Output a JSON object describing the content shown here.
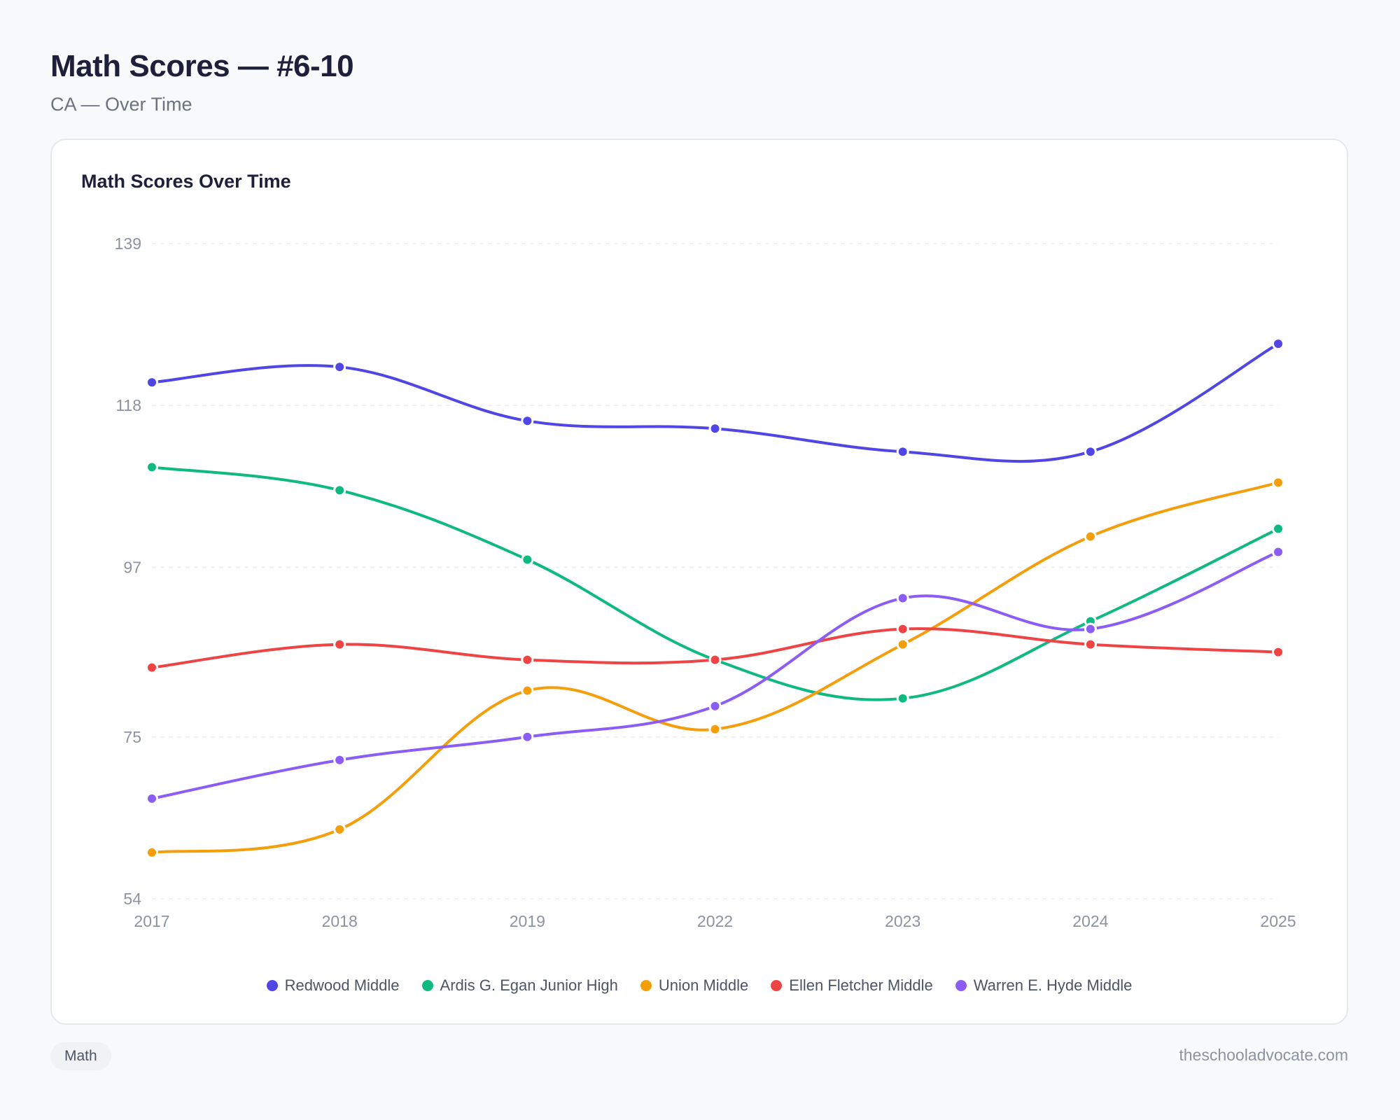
{
  "page": {
    "title": "Math Scores — #6-10",
    "subtitle": "CA — Over Time"
  },
  "footer": {
    "tag": "Math",
    "site": "theschooladvocate.com"
  },
  "chart_data": {
    "type": "line",
    "title": "Math Scores Over Time",
    "xlabel": "",
    "ylabel": "",
    "x": [
      "2017",
      "2018",
      "2019",
      "2022",
      "2023",
      "2024",
      "2025"
    ],
    "ylim": [
      54,
      139
    ],
    "yticks": [
      54,
      75,
      97,
      118,
      139
    ],
    "grid": true,
    "legend": "bottom-center",
    "series": [
      {
        "name": "Redwood Middle",
        "color": "#4f46e5",
        "values": [
          121,
          123,
          116,
          115,
          112,
          112,
          126
        ]
      },
      {
        "name": "Ardis G. Egan Junior High",
        "color": "#10b981",
        "values": [
          110,
          107,
          98,
          85,
          80,
          90,
          102
        ]
      },
      {
        "name": "Union Middle",
        "color": "#f59e0b",
        "values": [
          60,
          63,
          81,
          76,
          87,
          101,
          108
        ]
      },
      {
        "name": "Ellen Fletcher Middle",
        "color": "#ef4444",
        "values": [
          84,
          87,
          85,
          85,
          89,
          87,
          86
        ]
      },
      {
        "name": "Warren E. Hyde Middle",
        "color": "#8b5cf6",
        "values": [
          67,
          72,
          75,
          79,
          93,
          89,
          99
        ]
      }
    ]
  }
}
